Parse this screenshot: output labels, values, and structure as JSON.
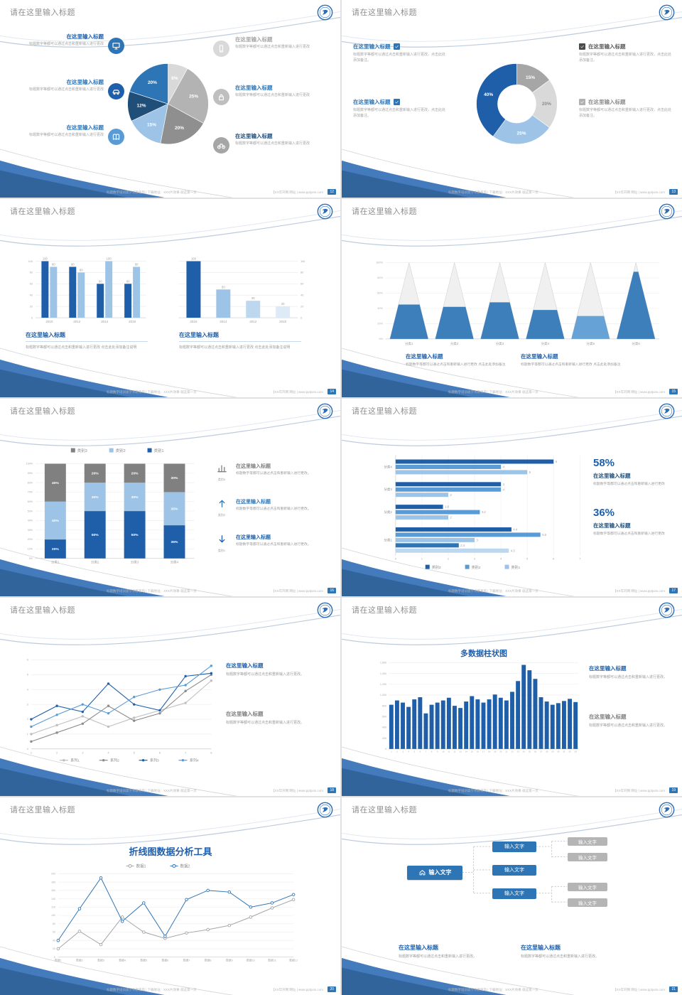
{
  "common": {
    "slide_title": "请在这里输入标题",
    "footer_left": "标题数字培训类学术教育风 | 下载地址：XXX片效果·就这第一页",
    "footer_right": "【XX年开网 网址 | www.pptjuns.com",
    "colors": {
      "accent_blue": "#2e75b6",
      "dark_blue": "#1f5fa9",
      "navy": "#1f4e79",
      "light_blue": "#9dc3e6",
      "gray": "#a6a6a6",
      "light_gray": "#d9d9d9"
    }
  },
  "slides": [
    {
      "page": "12",
      "type": "pie",
      "chart": 0,
      "items_left": [
        {
          "icon": "monitor",
          "icon_bg": "#2e75b6",
          "title": "在这里输入标题",
          "title_color": "#1f5fa9",
          "text": "标题数字等都可以通过点击和重新输入进行更改"
        },
        {
          "icon": "car",
          "icon_bg": "#1f5fa9",
          "title": "在这里输入标题",
          "title_color": "#2e75b6",
          "text": "标题数字等都可以通过点击和重新输入进行更改"
        },
        {
          "icon": "book",
          "icon_bg": "#5b9bd5",
          "title": "在这里输入标题",
          "title_color": "#2e75b6",
          "text": "标题数字等都可以通过点击和重新输入进行更改"
        }
      ],
      "items_right": [
        {
          "icon": "smartphone",
          "icon_bg": "#d9d9d9",
          "title": "在这里输入标题",
          "title_color": "#a6a6a6",
          "text": "标题数字等都可以通过点击和重新输入进行更改"
        },
        {
          "icon": "lock",
          "icon_bg": "#bfbfbf",
          "title": "在这里输入标题",
          "title_color": "#2e75b6",
          "text": "标题数字等都可以通过点击和重新输入进行更改"
        },
        {
          "icon": "bicycle",
          "icon_bg": "#a6a6a6",
          "title": "在这里输入标题",
          "title_color": "#1f4e79",
          "text": "标题数字等都可以通过点击和重新输入进行更改"
        }
      ]
    },
    {
      "page": "13",
      "type": "donut",
      "chart": 1,
      "items_left": [
        {
          "title": "在这里输入标题",
          "title_color": "#2e75b6",
          "checkbox": "#2e75b6",
          "text": "标题数字等都可以通过点击和重新输入进行更改，点击此处添加备注。"
        },
        {
          "title": "在这里输入标题",
          "title_color": "#2e75b6",
          "checkbox": "#2e75b6",
          "text": "标题数字等都可以通过点击和重新输入进行更改，点击此处添加备注。"
        }
      ],
      "items_right": [
        {
          "title": "在这里输入标题",
          "title_color": "#595959",
          "checkbox": "#4a4a4a",
          "text": "标题数字等都可以通过点击和重新输入进行更改，点击此处添加备注。"
        },
        {
          "title": "在这里输入标题",
          "title_color": "#8c8c8c",
          "checkbox": "#b0b0b0",
          "text": "标题数字等都可以通过点击和重新输入进行更改，点击此处添加备注。"
        }
      ]
    },
    {
      "page": "14",
      "type": "dualbar",
      "charts": [
        2,
        3
      ],
      "sections": [
        {
          "title": "在这里输入标题",
          "text": "标题数字等都可以通过点击和重新输入进行更改 点击此处添加备注说明"
        },
        {
          "title": "在这里输入标题",
          "text": "标题数字等都可以通过点击和重新输入进行更改 点击此处添加备注说明"
        }
      ]
    },
    {
      "page": "15",
      "type": "cones",
      "chart": 4,
      "sections": [
        {
          "title": "在这里输入标题",
          "text": "标题数字等都可以通过点击和重新输入进行更改 点击此处添加备注"
        },
        {
          "title": "在这里输入标题",
          "text": "标题数字等都可以通过点击和重新输入进行更改 点击此处添加备注"
        }
      ]
    },
    {
      "page": "16",
      "type": "stacked",
      "chart": 5,
      "items": [
        {
          "icon": "bar-chart",
          "icon_color": "#808080",
          "caption": "类别3",
          "title": "在这里输入标题",
          "title_color": "#7f7f7f",
          "text": "标题数字等都可以通过点击和重新输入进行更改。"
        },
        {
          "icon": "arrow-up",
          "icon_color": "#2e75b6",
          "caption": "类别2",
          "title": "在这里输入标题",
          "title_color": "#2e75b6",
          "text": "标题数字等都可以通过点击和重新输入进行更改。"
        },
        {
          "icon": "arrow-down",
          "icon_color": "#1f5fa9",
          "caption": "类别1",
          "title": "在这里输入标题",
          "title_color": "#1f5fa9",
          "text": "标题数字等都可以通过点击和重新输入进行更改。"
        }
      ]
    },
    {
      "page": "17",
      "type": "hbar",
      "chart": 6,
      "stats": [
        {
          "value": "58%",
          "title": "在这里输入标题",
          "text": "标题数字等都可以通过点击和重新输入进行更改"
        },
        {
          "value": "36%",
          "title": "在这里输入标题",
          "text": "标题数字等都可以通过点击和重新输入进行更改"
        }
      ]
    },
    {
      "page": "18",
      "type": "lines",
      "chart": 7,
      "items": [
        {
          "title": "在这里输入标题",
          "title_color": "#1f5fa9",
          "text": "标题数字等都可以通过点击和重新输入进行更改。"
        },
        {
          "title": "在这里输入标题",
          "title_color": "#7f7f7f",
          "text": "标题数字等都可以通过点击和重新输入进行更改。"
        }
      ]
    },
    {
      "page": "19",
      "type": "densebar",
      "chart": 8,
      "items": [
        {
          "title": "在这里输入标题",
          "title_color": "#1f5fa9",
          "text": "标题数字等都可以通过点击和重新输入进行更改。"
        },
        {
          "title": "在这里输入标题",
          "title_color": "#7f7f7f",
          "text": "标题数字等都可以通过点击和重新输入进行更改。"
        }
      ]
    },
    {
      "page": "20",
      "type": "linetool",
      "chart": 9
    },
    {
      "page": "21",
      "type": "diagram",
      "root_label": "输入文字",
      "mid_labels": [
        "输入文字",
        "输入文字",
        "输入文字"
      ],
      "leaf_labels": [
        "输入文字",
        "输入文字",
        "输入文字",
        "输入文字"
      ],
      "sections": [
        {
          "title": "在这里输入标题",
          "text": "标题数字等都可以通过点击和重新输入进行更改。"
        },
        {
          "title": "在这里输入标题",
          "text": "标题数字等都可以通过点击和重新输入进行更改。"
        }
      ]
    }
  ],
  "chart_data": [
    {
      "slide_page": "12",
      "type": "pie",
      "values": [
        8,
        25,
        20,
        15,
        12,
        20
      ],
      "labels": [
        "8%",
        "25%",
        "20%",
        "15%",
        "12%",
        "20%"
      ],
      "colors": [
        "#d9d9d9",
        "#b3b3b3",
        "#8f8f8f",
        "#9dc3e6",
        "#1f4e79",
        "#2e75b6"
      ]
    },
    {
      "slide_page": "13",
      "type": "donut",
      "values": [
        15,
        20,
        25,
        40
      ],
      "labels": [
        "15%",
        "20%",
        "25%",
        "40%"
      ],
      "colors": [
        "#a6a6a6",
        "#d9d9d9",
        "#9dc3e6",
        "#1f5fa9"
      ],
      "label_colors": [
        "#ffffff",
        "#8c8c8c",
        "#ffffff",
        "#ffffff"
      ]
    },
    {
      "slide_page": "14",
      "type": "bar",
      "categories": [
        "2010",
        "2012",
        "2014",
        "2016"
      ],
      "series": [
        {
          "color": "#1f5fa9",
          "values": [
            100,
            90,
            60,
            60
          ]
        },
        {
          "color": "#9dc3e6",
          "values": [
            90,
            80,
            100,
            90
          ]
        }
      ],
      "ylim": [
        0,
        100
      ],
      "yticks": [
        0,
        20,
        40,
        60,
        80,
        100
      ]
    },
    {
      "slide_page": "14",
      "type": "bar",
      "categories": [
        "2016",
        "2014",
        "2012",
        "2010"
      ],
      "values": [
        100,
        50,
        30,
        20
      ],
      "colors": [
        "#1f5fa9",
        "#9dc3e6",
        "#bdd7ee",
        "#deebf7"
      ],
      "ylim": [
        0,
        100
      ],
      "yticks": [
        0,
        20,
        40,
        60,
        80,
        100
      ]
    },
    {
      "slide_page": "15",
      "type": "cone",
      "categories": [
        "分类1",
        "分类2",
        "分类3",
        "分类4",
        "分类5",
        "分类6"
      ],
      "fill_percent": [
        45,
        42,
        48,
        38,
        30,
        88
      ],
      "colors": [
        "#2e75b6",
        "#2e75b6",
        "#2e75b6",
        "#2e75b6",
        "#5b9bd5",
        "#2e75b6"
      ],
      "yticks": [
        "0%",
        "20%",
        "40%",
        "60%",
        "80%",
        "100%"
      ]
    },
    {
      "slide_page": "16",
      "type": "bar-stacked-100",
      "categories": [
        "分类1",
        "分类2",
        "分类3",
        "分类4"
      ],
      "series": [
        {
          "name": "类别1",
          "color": "#1f5fa9",
          "values": [
            20,
            50,
            50,
            35
          ]
        },
        {
          "name": "类别2",
          "color": "#9dc3e6",
          "values": [
            40,
            30,
            30,
            35
          ]
        },
        {
          "name": "类别3",
          "color": "#808080",
          "values": [
            40,
            20,
            20,
            30
          ]
        }
      ],
      "legend": [
        {
          "name": "类别3",
          "color": "#808080"
        },
        {
          "name": "类别2",
          "color": "#9dc3e6"
        },
        {
          "name": "类别1",
          "color": "#1f5fa9"
        }
      ],
      "ylim_percent": [
        0,
        100
      ]
    },
    {
      "slide_page": "17",
      "type": "bar-horizontal-grouped",
      "groups": [
        {
          "label": "分类4",
          "bars": [
            {
              "value": 6,
              "color": "#1f5fa9"
            },
            {
              "value": 4,
              "color": "#5b9bd5"
            },
            {
              "value": 5,
              "color": "#9dc3e6"
            }
          ]
        },
        {
          "label": "分类3",
          "bars": [
            {
              "value": 4,
              "color": "#1f5fa9"
            },
            {
              "value": 4,
              "color": "#5b9bd5"
            },
            {
              "value": 2,
              "color": "#9dc3e6"
            }
          ]
        },
        {
          "label": "分类2",
          "bars": [
            {
              "value": 1.8,
              "color": "#1f5fa9"
            },
            {
              "value": 3.2,
              "color": "#5b9bd5"
            },
            {
              "value": 2,
              "color": "#9dc3e6"
            }
          ]
        },
        {
          "label": "分类1",
          "bars": [
            {
              "value": 4.4,
              "color": "#1f5fa9"
            },
            {
              "value": 5.5,
              "color": "#5b9bd5"
            },
            {
              "value": 3,
              "color": "#9dc3e6"
            },
            {
              "value": 2.4,
              "color": "#2e75b6"
            },
            {
              "value": 4.3,
              "color": "#bdd7ee"
            }
          ]
        }
      ],
      "xticks": [
        0,
        1,
        2,
        3,
        4,
        5,
        6,
        7
      ],
      "legend": [
        {
          "name": "类别3",
          "color": "#1f5fa9"
        },
        {
          "name": "类别2",
          "color": "#5b9bd5"
        },
        {
          "name": "类别1",
          "color": "#9dc3e6"
        }
      ]
    },
    {
      "slide_page": "18",
      "type": "line",
      "x": [
        1,
        2,
        3,
        4,
        5,
        6,
        7,
        8
      ],
      "ylim": [
        0,
        6
      ],
      "series": [
        {
          "name": "系列1",
          "color": "#bfbfbf",
          "values": [
            1.0,
            1.6,
            2.2,
            1.5,
            2.1,
            2.6,
            3.1,
            4.6
          ]
        },
        {
          "name": "系列2",
          "color": "#8c8c8c",
          "values": [
            0.5,
            1.1,
            1.7,
            2.9,
            1.9,
            2.4,
            3.9,
            5.0
          ]
        },
        {
          "name": "系列3",
          "color": "#1f5fa9",
          "values": [
            2.0,
            2.9,
            2.5,
            4.4,
            3.0,
            2.6,
            4.9,
            5.1
          ]
        },
        {
          "name": "系列4",
          "color": "#5b9bd5",
          "values": [
            1.5,
            2.3,
            3.0,
            2.4,
            3.5,
            4.0,
            4.3,
            5.6
          ]
        }
      ]
    },
    {
      "slide_page": "19",
      "type": "bar",
      "title": "多数据柱状图",
      "categories": [
        "1",
        "2",
        "3",
        "4",
        "5",
        "6",
        "7",
        "8",
        "9",
        "10",
        "11",
        "12",
        "13",
        "14",
        "15",
        "16",
        "17",
        "18",
        "19",
        "20",
        "21",
        "22",
        "23",
        "24",
        "25",
        "26",
        "27",
        "28",
        "29",
        "30",
        "31",
        "32",
        "33"
      ],
      "values": [
        820,
        900,
        860,
        780,
        920,
        960,
        660,
        820,
        860,
        900,
        950,
        800,
        760,
        880,
        980,
        920,
        860,
        920,
        1010,
        950,
        900,
        1060,
        1260,
        1560,
        1460,
        1300,
        960,
        880,
        820,
        850,
        890,
        930,
        870
      ],
      "color": "#1f5fa9",
      "ylim": [
        0,
        1600
      ],
      "yticks": [
        "0",
        "200",
        "400",
        "600",
        "800",
        "1,000",
        "1,200",
        "1,400",
        "1,600"
      ]
    },
    {
      "slide_page": "20",
      "type": "line",
      "title": "折线图数据分析工具",
      "x": [
        "数据1",
        "数据2",
        "数据3",
        "数据4",
        "数据5",
        "数据6",
        "数据7",
        "数据8",
        "数据9",
        "数据10",
        "数据11",
        "数据12"
      ],
      "ylim": [
        0,
        200
      ],
      "ytick_step": 20,
      "series": [
        {
          "name": "数据1",
          "color": "#a6a6a6",
          "values": [
            20,
            62,
            30,
            96,
            60,
            45,
            58,
            66,
            76,
            96,
            118,
            138
          ]
        },
        {
          "name": "数据2",
          "color": "#2e75b6",
          "values": [
            40,
            116,
            190,
            86,
            130,
            50,
            138,
            160,
            156,
            120,
            130,
            150
          ]
        }
      ]
    }
  ]
}
